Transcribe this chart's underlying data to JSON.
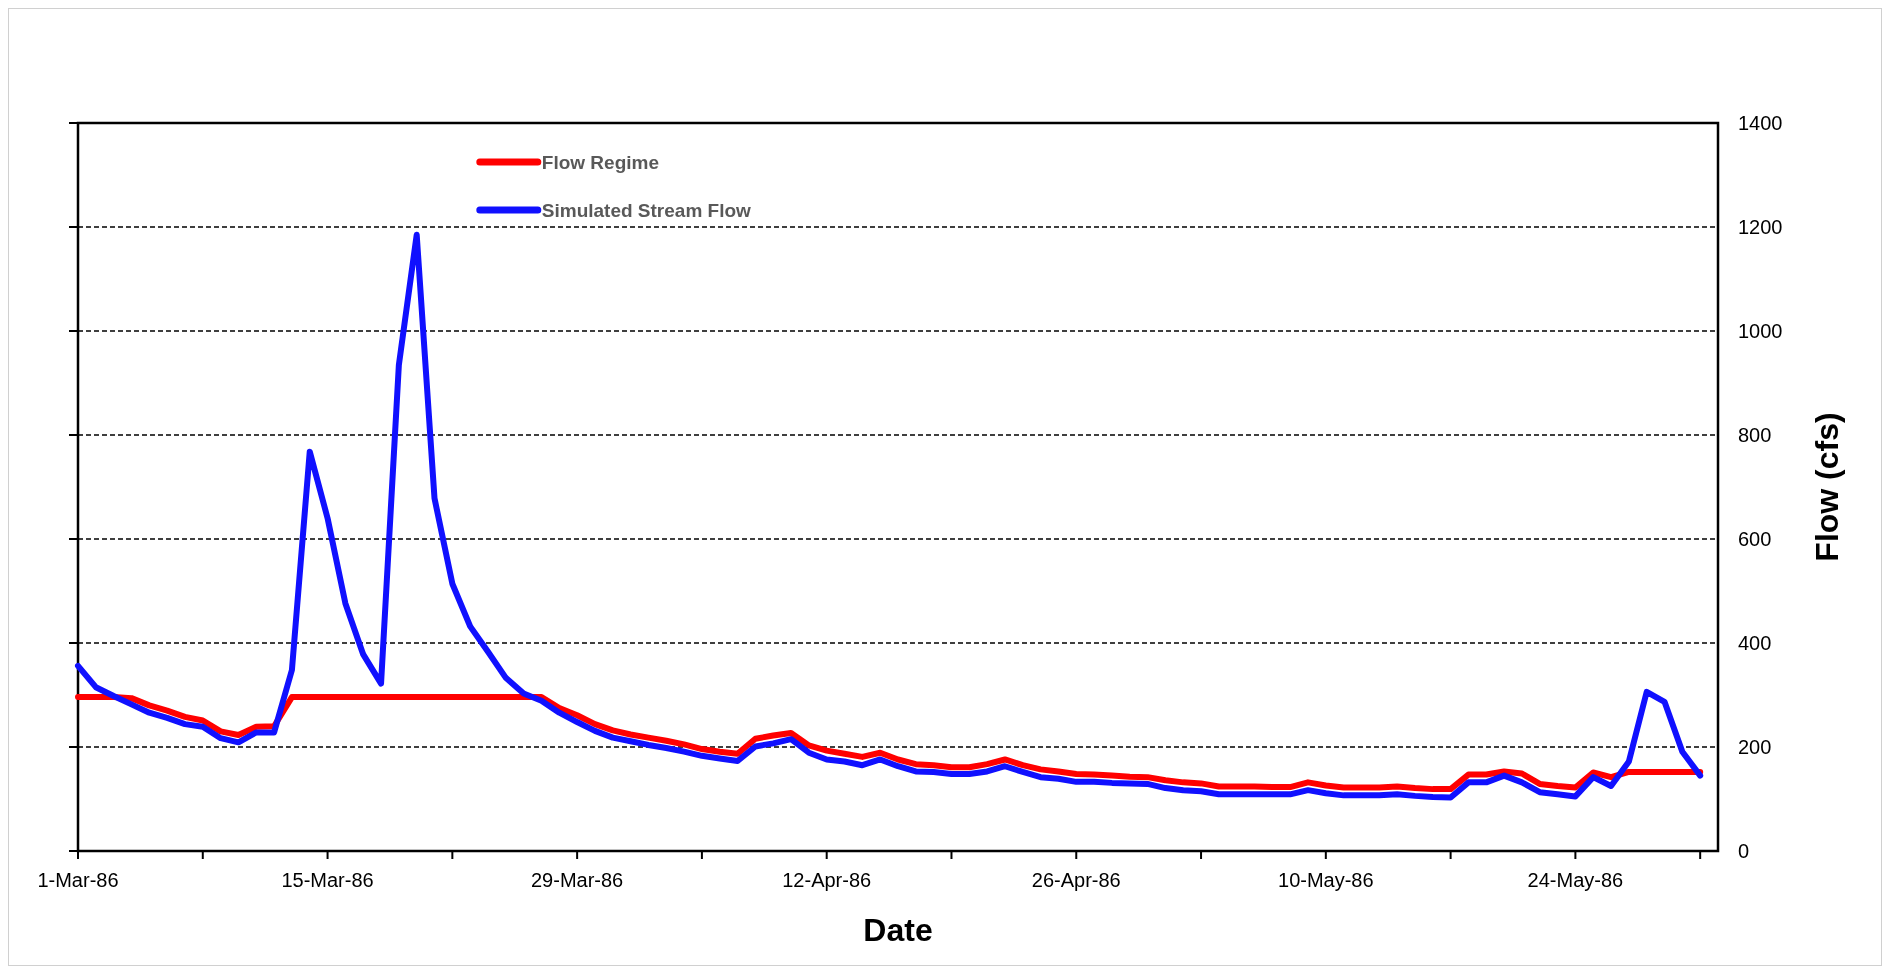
{
  "chart_data": {
    "type": "line",
    "xlabel": "Date",
    "ylabel": "Flow (cfs)",
    "x": [
      "1986-03-01",
      "1986-03-02",
      "1986-03-03",
      "1986-03-04",
      "1986-03-05",
      "1986-03-06",
      "1986-03-07",
      "1986-03-08",
      "1986-03-09",
      "1986-03-10",
      "1986-03-11",
      "1986-03-12",
      "1986-03-13",
      "1986-03-14",
      "1986-03-15",
      "1986-03-16",
      "1986-03-17",
      "1986-03-18",
      "1986-03-19",
      "1986-03-20",
      "1986-03-21",
      "1986-03-22",
      "1986-03-23",
      "1986-03-24",
      "1986-03-25",
      "1986-03-26",
      "1986-03-27",
      "1986-03-28",
      "1986-03-29",
      "1986-03-30",
      "1986-03-31",
      "1986-04-01",
      "1986-04-02",
      "1986-04-03",
      "1986-04-04",
      "1986-04-05",
      "1986-04-06",
      "1986-04-07",
      "1986-04-08",
      "1986-04-09",
      "1986-04-10",
      "1986-04-11",
      "1986-04-12",
      "1986-04-13",
      "1986-04-14",
      "1986-04-15",
      "1986-04-16",
      "1986-04-17",
      "1986-04-18",
      "1986-04-19",
      "1986-04-20",
      "1986-04-21",
      "1986-04-22",
      "1986-04-23",
      "1986-04-24",
      "1986-04-25",
      "1986-04-26",
      "1986-04-27",
      "1986-04-28",
      "1986-04-29",
      "1986-04-30",
      "1986-05-01",
      "1986-05-02",
      "1986-05-03",
      "1986-05-04",
      "1986-05-05",
      "1986-05-06",
      "1986-05-07",
      "1986-05-08",
      "1986-05-09",
      "1986-05-10",
      "1986-05-11",
      "1986-05-12",
      "1986-05-13",
      "1986-05-14",
      "1986-05-15",
      "1986-05-16",
      "1986-05-17",
      "1986-05-18",
      "1986-05-19",
      "1986-05-20",
      "1986-05-21",
      "1986-05-22",
      "1986-05-23",
      "1986-05-24",
      "1986-05-25",
      "1986-05-26",
      "1986-05-27",
      "1986-05-28",
      "1986-05-29",
      "1986-05-30",
      "1986-05-31"
    ],
    "series": [
      {
        "name": "Flow Regime",
        "color": "#ff0000",
        "values": [
          296,
          296,
          296,
          294,
          280,
          270,
          258,
          251,
          230,
          223,
          239,
          240,
          296,
          296,
          296,
          296,
          296,
          296,
          296,
          296,
          296,
          296,
          296,
          296,
          296,
          296,
          296,
          275,
          261,
          244,
          232,
          224,
          218,
          212,
          205,
          196,
          191,
          187,
          216,
          222,
          227,
          203,
          193,
          187,
          181,
          189,
          176,
          167,
          165,
          161,
          161,
          167,
          176,
          165,
          157,
          153,
          148,
          147,
          145,
          143,
          142,
          136,
          132,
          130,
          124,
          124,
          124,
          123,
          123,
          132,
          126,
          122,
          122,
          122,
          124,
          121,
          119,
          119,
          147,
          147,
          153,
          149,
          129,
          125,
          122,
          151,
          142,
          152,
          152,
          152,
          152,
          152
        ]
      },
      {
        "name": "Simulated Stream Flow",
        "color": "#1010ff",
        "values": [
          356,
          315,
          298,
          282,
          266,
          256,
          244,
          239,
          217,
          209,
          228,
          228,
          348,
          768,
          640,
          476,
          378,
          322,
          935,
          1185,
          678,
          514,
          432,
          383,
          333,
          303,
          289,
          266,
          248,
          231,
          218,
          211,
          204,
          198,
          191,
          183,
          178,
          173,
          201,
          207,
          215,
          189,
          176,
          172,
          165,
          176,
          163,
          153,
          152,
          148,
          148,
          153,
          163,
          152,
          142,
          139,
          133,
          133,
          131,
          130,
          129,
          121,
          117,
          115,
          109,
          109,
          109,
          109,
          109,
          117,
          111,
          107,
          107,
          107,
          109,
          106,
          104,
          103,
          132,
          132,
          145,
          132,
          113,
          109,
          105,
          142,
          125,
          172,
          306,
          287,
          191,
          145
        ]
      }
    ],
    "xlim": [
      "1986-03-01",
      "1986-06-01"
    ],
    "xticks": [
      {
        "value": "1986-03-01",
        "label": "1-Mar-86"
      },
      {
        "value": "1986-03-08",
        "label": null
      },
      {
        "value": "1986-03-15",
        "label": "15-Mar-86"
      },
      {
        "value": "1986-03-22",
        "label": null
      },
      {
        "value": "1986-03-29",
        "label": "29-Mar-86"
      },
      {
        "value": "1986-04-05",
        "label": null
      },
      {
        "value": "1986-04-12",
        "label": "12-Apr-86"
      },
      {
        "value": "1986-04-19",
        "label": null
      },
      {
        "value": "1986-04-26",
        "label": "26-Apr-86"
      },
      {
        "value": "1986-05-03",
        "label": null
      },
      {
        "value": "1986-05-10",
        "label": "10-May-86"
      },
      {
        "value": "1986-05-17",
        "label": null
      },
      {
        "value": "1986-05-24",
        "label": "24-May-86"
      },
      {
        "value": "1986-05-31",
        "label": null
      }
    ],
    "ylim": [
      0,
      1400
    ],
    "yticks": [
      0,
      200,
      400,
      600,
      800,
      1000,
      1200,
      1400
    ],
    "grid": "y",
    "legend": "top",
    "marker": "none",
    "line_style": "solid"
  }
}
